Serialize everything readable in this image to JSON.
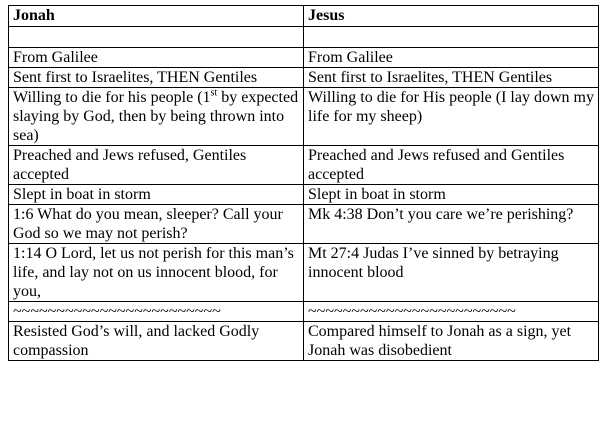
{
  "table": {
    "headers": [
      "Jonah",
      "Jesus"
    ],
    "rows": [
      {
        "jonah": "",
        "jesus": ""
      },
      {
        "jonah": "From Galilee",
        "jesus": "From Galilee"
      },
      {
        "jonah": "Sent first to Israelites, THEN Gentiles",
        "jesus": "Sent first to Israelites, THEN Gentiles"
      },
      {
        "jonah_pre": "Willing to die for his people (1",
        "jonah_sup": "st",
        "jonah_post": " by expected slaying by God, then by being thrown into sea)",
        "jesus": "Willing to die for His people (I lay down my life for my sheep)"
      },
      {
        "jonah": "Preached and Jews refused, Gentiles accepted",
        "jesus": "Preached and Jews refused and Gentiles accepted"
      },
      {
        "jonah": "Slept in boat in storm",
        "jesus": "Slept in boat in storm"
      },
      {
        "jonah": "1:6 What do you mean, sleeper? Call your God so we may not perish?",
        "jesus": "Mk 4:38 Don’t you care we’re perishing?"
      },
      {
        "jonah": "1:14 O Lord, let us not perish for this man’s life, and lay not on us innocent blood, for you,",
        "jesus": "Mt 27:4 Judas I’ve sinned by betraying innocent blood"
      },
      {
        "jonah": "~~~~~~~~~~~~~~~~~~~~~~~~",
        "jesus": "~~~~~~~~~~~~~~~~~~~~~~~~"
      },
      {
        "jonah": "Resisted God’s will, and lacked Godly compassion",
        "jesus": "Compared himself to Jonah as a sign, yet Jonah was disobedient"
      }
    ]
  }
}
